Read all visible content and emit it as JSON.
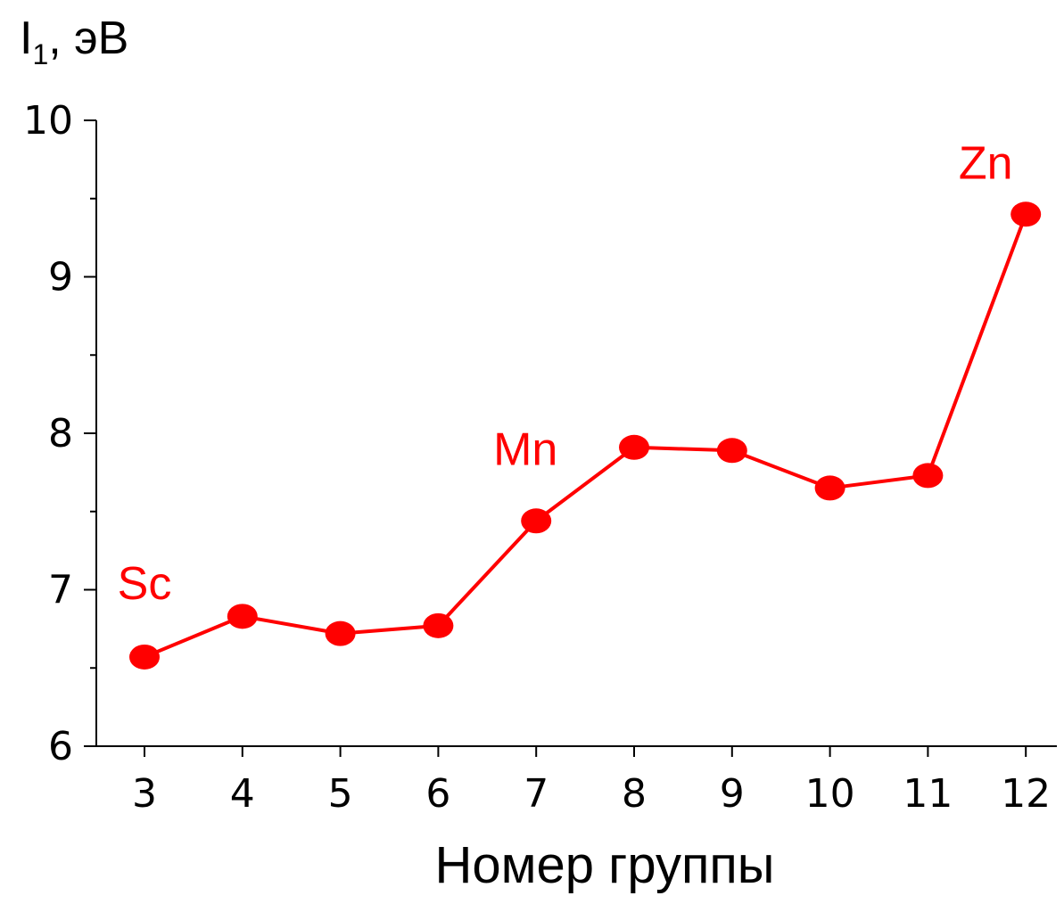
{
  "chart_data": {
    "type": "line",
    "title": "",
    "ylabel": {
      "symbol": "I",
      "subscript": "1",
      "unit": ", эВ"
    },
    "xlabel": "Номер группы",
    "x": [
      3,
      4,
      5,
      6,
      7,
      8,
      9,
      10,
      11,
      12
    ],
    "x_ticks": [
      "3",
      "4",
      "5",
      "6",
      "7",
      "8",
      "9",
      "10",
      "11",
      "12"
    ],
    "y_ticks": [
      "6",
      "7",
      "8",
      "9",
      "10"
    ],
    "ylim": [
      6,
      10
    ],
    "series": [
      {
        "values": [
          6.57,
          6.83,
          6.72,
          6.77,
          7.44,
          7.91,
          7.89,
          7.65,
          7.73,
          9.4
        ],
        "color": "#ff0000",
        "marker": "filled-circle"
      }
    ],
    "annotations": [
      {
        "text": "Sc",
        "x": 3,
        "y": 6.57
      },
      {
        "text": "Mn",
        "x": 7,
        "y": 7.44
      },
      {
        "text": "Zn",
        "x": 12,
        "y": 9.4
      }
    ],
    "grid": false,
    "legend": "none"
  }
}
